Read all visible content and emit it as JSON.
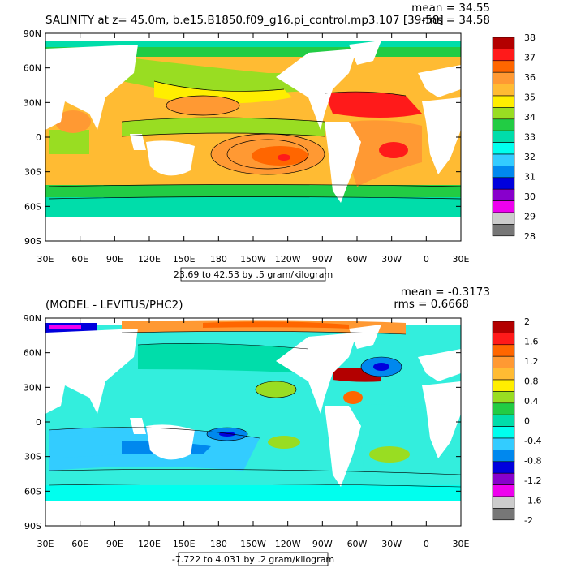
{
  "panels": [
    {
      "id": "salinity",
      "title": "SALINITY at z=  45.0m, b.e15.B1850.f09_g16.pi_control.mp3.107 [39-58]",
      "mean_label": "mean = 34.55",
      "rms_label": "rms = 34.58",
      "range_label": "23.69 to 42.53 by .5 gram/kilogram",
      "x_ticks": [
        "30E",
        "60E",
        "90E",
        "120E",
        "150E",
        "180",
        "150W",
        "120W",
        "90W",
        "60W",
        "30W",
        "0",
        "30E"
      ],
      "y_ticks": [
        "90N",
        "60N",
        "30N",
        "0",
        "30S",
        "60S",
        "90S"
      ],
      "colorbar_labels": [
        "38",
        "37",
        "36",
        "35",
        "34",
        "33",
        "32",
        "31",
        "30",
        "29",
        "28"
      ],
      "colorbar_colors": [
        "#b30000",
        "#ff1a1a",
        "#ff6600",
        "#ff9933",
        "#ffbb33",
        "#ffee00",
        "#99dd22",
        "#22cc44",
        "#00ddaa",
        "#00ffee",
        "#33ccff",
        "#0088ee",
        "#0000dd",
        "#8800cc",
        "#ee00ee",
        "#cccccc",
        "#777777"
      ],
      "ocean_fill": "#ffbb33"
    },
    {
      "id": "difference",
      "title": "(MODEL - LEVITUS/PHC2)",
      "mean_label": "mean = -0.3173",
      "rms_label": "rms = 0.6668",
      "range_label": "-7.722 to 4.031 by .2 gram/kilogram",
      "x_ticks": [
        "30E",
        "60E",
        "90E",
        "120E",
        "150E",
        "180",
        "150W",
        "120W",
        "90W",
        "60W",
        "30W",
        "0",
        "30E"
      ],
      "y_ticks": [
        "90N",
        "60N",
        "30N",
        "0",
        "30S",
        "60S",
        "90S"
      ],
      "colorbar_labels": [
        "2",
        "1.6",
        "1.2",
        "0.8",
        "0.4",
        "0",
        "-0.4",
        "-0.8",
        "-1.2",
        "-1.6",
        "-2"
      ],
      "colorbar_colors": [
        "#b30000",
        "#ff1a1a",
        "#ff6600",
        "#ff9933",
        "#ffbb33",
        "#ffee00",
        "#99dd22",
        "#22cc44",
        "#00ddaa",
        "#00ffee",
        "#33ccff",
        "#0088ee",
        "#0000dd",
        "#8800cc",
        "#ee00ee",
        "#cccccc",
        "#777777"
      ],
      "ocean_fill": "#33eedd"
    }
  ]
}
